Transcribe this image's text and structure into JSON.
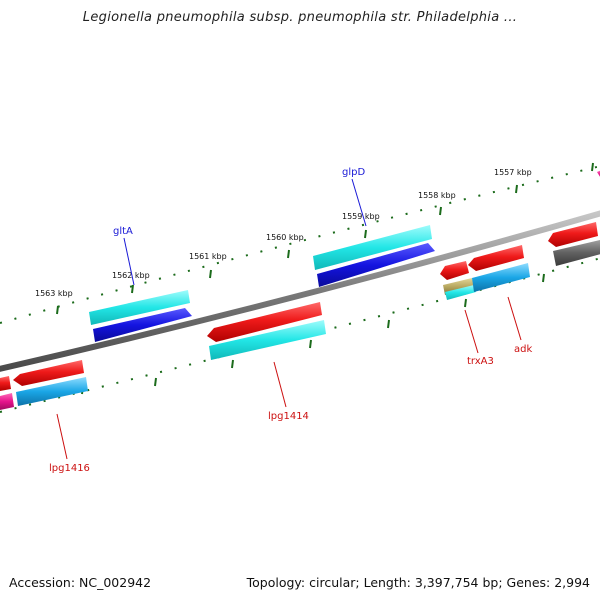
{
  "title": "Legionella pneumophila subsp. pneumophila str. Philadelphia ...",
  "footer": {
    "accession": "Accession: NC_002942",
    "summary": "Topology: circular; Length: 3,397,754 bp; Genes: 2,994"
  },
  "ticks": {
    "kbp_labels": [
      "1563 kbp",
      "1562 kbp",
      "1561 kbp",
      "1560 kbp",
      "1559 kbp",
      "1558 kbp",
      "1557 kbp"
    ],
    "color": "#1b6b1b"
  },
  "colors": {
    "backbone": "#8a8a8a",
    "gene_red": "#e8161b",
    "gene_cyan": "#22e6e6",
    "gene_blue": "#1414e0",
    "gene_skyblue": "#1aa6e6",
    "gene_gray": "#606060",
    "gene_olive": "#b8a860",
    "gene_magenta": "#e6148c",
    "label_blue": "#1a1ad6",
    "label_red": "#cc1010"
  },
  "gene_labels": {
    "gltA": "gltA",
    "glpD": "glpD",
    "lpg1414": "lpg1414",
    "lpg1416": "lpg1416",
    "trxA3": "trxA3",
    "adk": "adk"
  }
}
